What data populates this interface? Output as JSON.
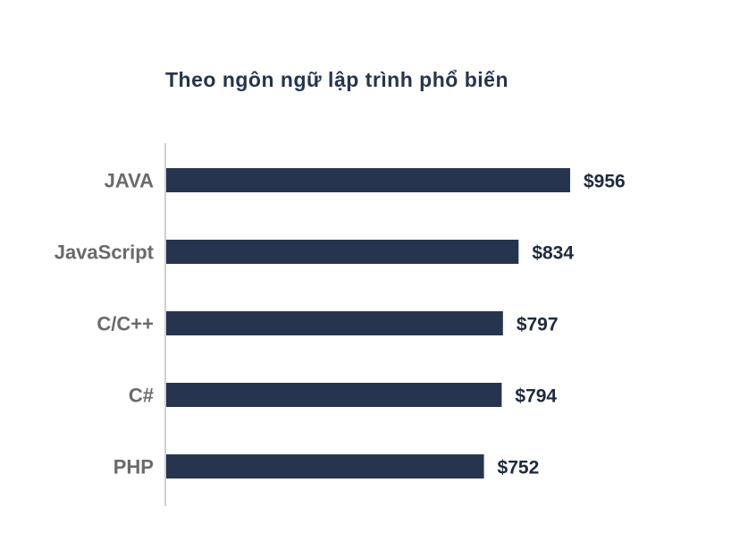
{
  "chart_data": {
    "type": "bar",
    "orientation": "horizontal",
    "title": "Theo ngôn ngữ lập trình phổ biến",
    "categories": [
      "JAVA",
      "JavaScript",
      "C/C++",
      "C#",
      "PHP"
    ],
    "values": [
      956,
      834,
      797,
      794,
      752
    ],
    "value_labels": [
      "$956",
      "$834",
      "$797",
      "$794",
      "$752"
    ],
    "xlim": [
      0,
      956
    ],
    "grid": false,
    "legend": "none"
  },
  "colors": {
    "bar": "#26344f",
    "title": "#26344f",
    "category_label": "#6a6a6a",
    "value_label": "#1f2a3d",
    "axis_line": "#cfcfcf"
  }
}
